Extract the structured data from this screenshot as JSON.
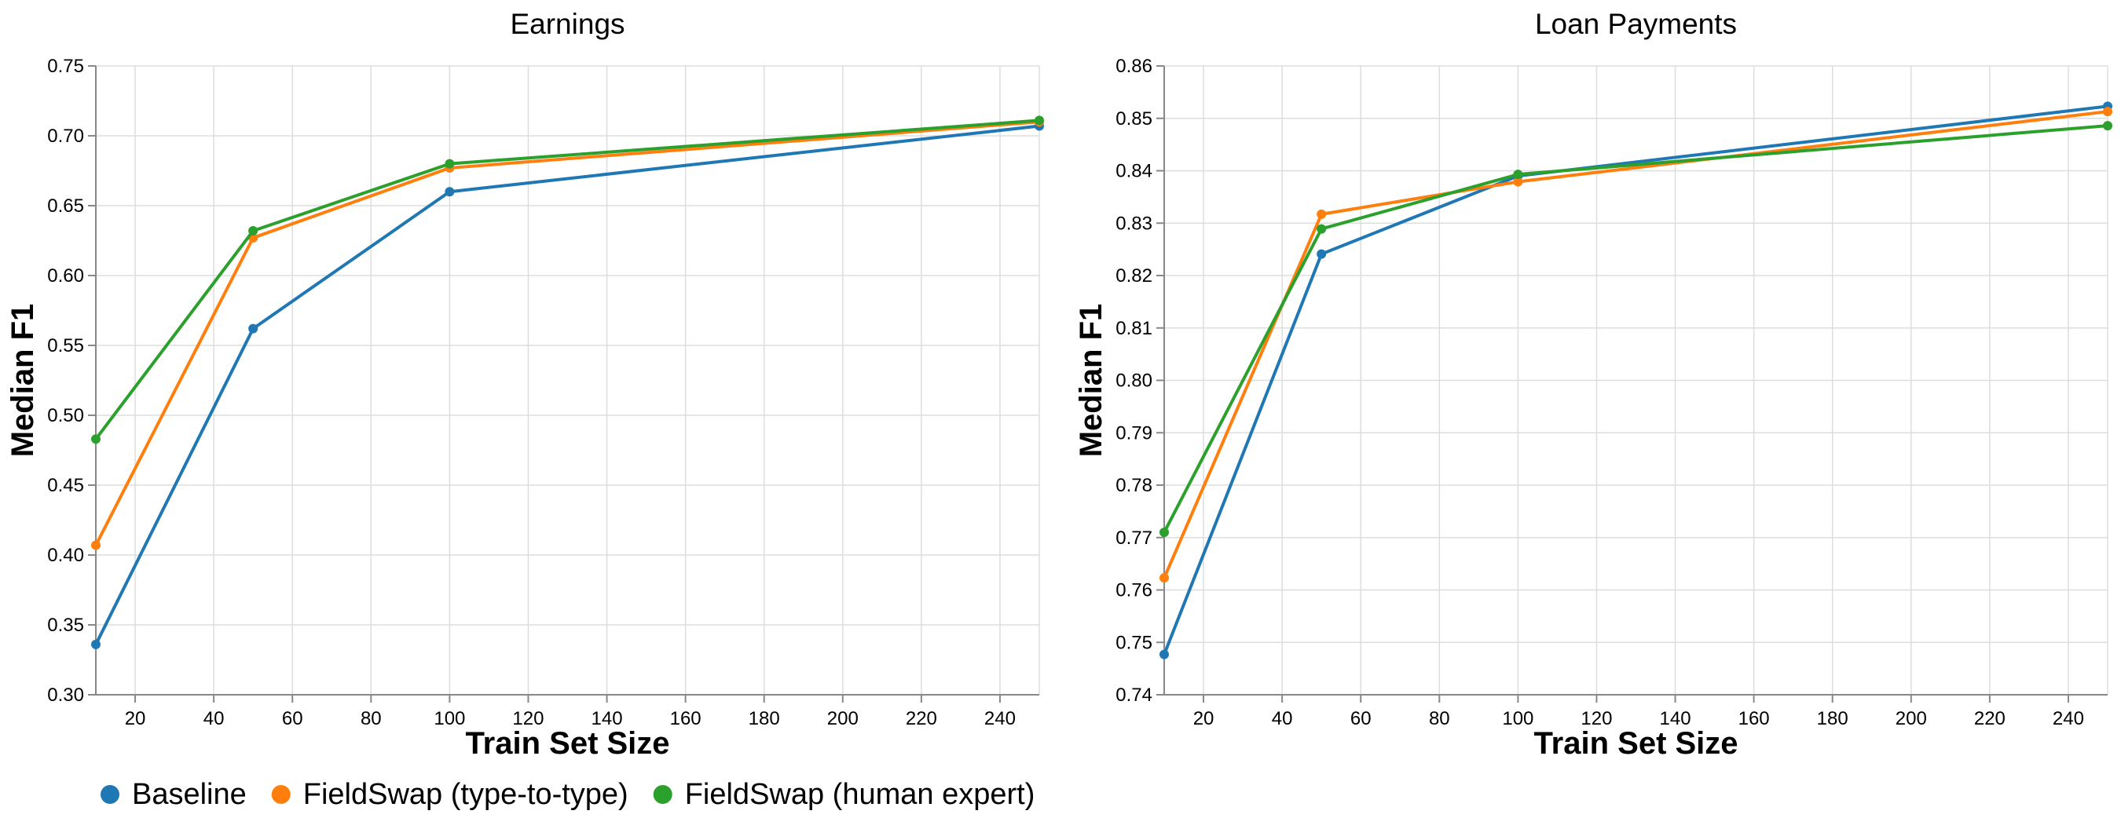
{
  "legend": [
    {
      "name": "Baseline",
      "color": "#1f77b4"
    },
    {
      "name": "FieldSwap (type-to-type)",
      "color": "#ff7f0e"
    },
    {
      "name": "FieldSwap (human expert)",
      "color": "#2ca02c"
    }
  ],
  "chart_data": [
    {
      "type": "line",
      "title": "Earnings",
      "xlabel": "Train Set Size",
      "ylabel": "Median F1",
      "xlim": [
        10,
        250
      ],
      "ylim": [
        0.3,
        0.75
      ],
      "xticks": [
        20,
        40,
        60,
        80,
        100,
        120,
        140,
        160,
        180,
        200,
        220,
        240
      ],
      "yticks": [
        "0.30",
        "0.35",
        "0.40",
        "0.45",
        "0.50",
        "0.55",
        "0.60",
        "0.65",
        "0.70",
        "0.75"
      ],
      "x": [
        10,
        50,
        100,
        250
      ],
      "series": [
        {
          "name": "Baseline",
          "color": "#1f77b4",
          "values": [
            0.336,
            0.562,
            0.66,
            0.707
          ]
        },
        {
          "name": "FieldSwap (type-to-type)",
          "color": "#ff7f0e",
          "values": [
            0.407,
            0.627,
            0.677,
            0.71
          ]
        },
        {
          "name": "FieldSwap (human expert)",
          "color": "#2ca02c",
          "values": [
            0.483,
            0.632,
            0.68,
            0.711
          ]
        }
      ]
    },
    {
      "type": "line",
      "title": "Loan Payments",
      "xlabel": "Train Set Size",
      "ylabel": "Median F1",
      "xlim": [
        10,
        250
      ],
      "ylim": [
        0.74,
        0.86
      ],
      "xticks": [
        20,
        40,
        60,
        80,
        100,
        120,
        140,
        160,
        180,
        200,
        220,
        240
      ],
      "yticks": [
        "0.74",
        "0.75",
        "0.76",
        "0.77",
        "0.78",
        "0.79",
        "0.80",
        "0.81",
        "0.82",
        "0.83",
        "0.84",
        "0.85",
        "0.86"
      ],
      "x": [
        10,
        50,
        100,
        250
      ],
      "series": [
        {
          "name": "Baseline",
          "color": "#1f77b4",
          "values": [
            0.7477,
            0.8241,
            0.839,
            0.8523
          ]
        },
        {
          "name": "FieldSwap (type-to-type)",
          "color": "#ff7f0e",
          "values": [
            0.7623,
            0.8317,
            0.8379,
            0.8513
          ]
        },
        {
          "name": "FieldSwap (human expert)",
          "color": "#2ca02c",
          "values": [
            0.771,
            0.8289,
            0.8393,
            0.8486
          ]
        }
      ]
    }
  ]
}
